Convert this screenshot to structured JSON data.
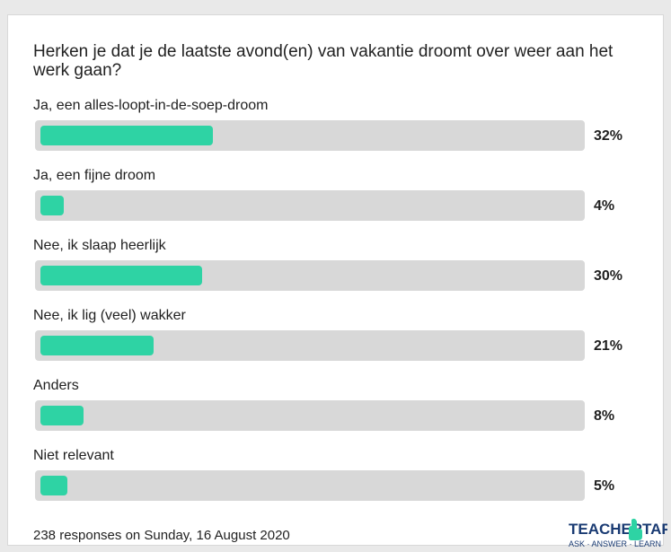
{
  "chart_data": {
    "type": "bar",
    "title": "Herken je dat je de laatste avond(en) van vakantie droomt over weer aan het werk gaan?",
    "categories": [
      "Ja, een alles-loopt-in-de-soep-droom",
      "Ja, een fijne droom",
      "Nee, ik slaap heerlijk",
      "Nee, ik lig (veel) wakker",
      "Anders",
      "Niet relevant"
    ],
    "values": [
      32,
      4,
      30,
      21,
      8,
      5
    ],
    "value_labels": [
      "32%",
      "4%",
      "30%",
      "21%",
      "8%",
      "5%"
    ],
    "unit": "%",
    "ylim": [
      0,
      100
    ],
    "orientation": "horizontal",
    "bar_color": "#2ed3a4",
    "track_color": "#d8d8d8"
  },
  "footer": {
    "responses_text": "238 responses on Sunday, 16 August 2020"
  },
  "logo": {
    "name": "teacher-tapp-logo",
    "word_left": "TEACHER",
    "word_right": "TAPP",
    "tagline": "ASK · ANSWER · LEARN",
    "color": "#1a3b73"
  }
}
